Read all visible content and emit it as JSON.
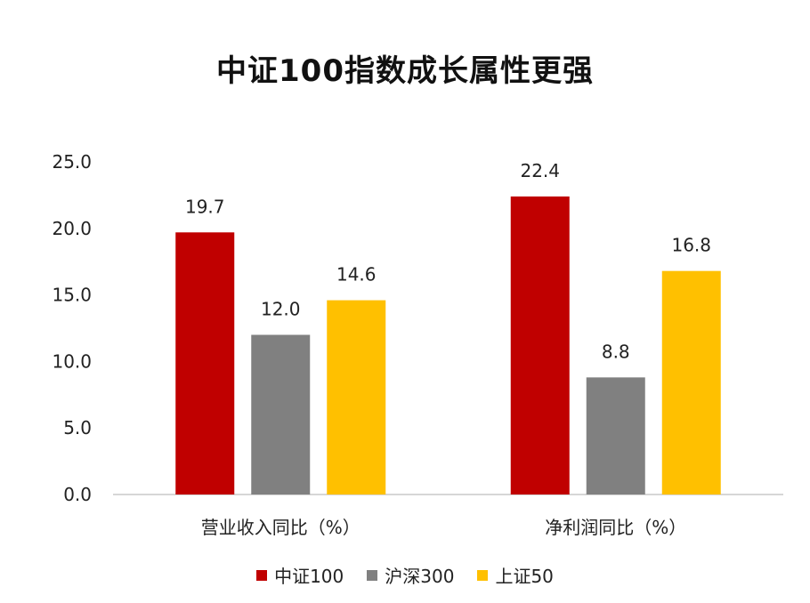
{
  "chart_data": {
    "type": "bar",
    "title": "中证100指数成长属性更强",
    "categories": [
      "营业收入同比（%）",
      "净利润同比（%）"
    ],
    "series": [
      {
        "name": "中证100",
        "values": [
          19.7,
          22.4
        ],
        "color": "#C00000"
      },
      {
        "name": "沪深300",
        "values": [
          12.0,
          8.8
        ],
        "color": "#808080"
      },
      {
        "name": "上证50",
        "values": [
          14.6,
          16.8
        ],
        "color": "#FFC000"
      }
    ],
    "value_labels": [
      [
        "19.7",
        "22.4"
      ],
      [
        "12.0",
        "8.8"
      ],
      [
        "14.6",
        "16.8"
      ]
    ],
    "ylim": [
      0,
      25
    ],
    "yticks": [
      "0.0",
      "5.0",
      "10.0",
      "15.0",
      "20.0",
      "25.0"
    ],
    "xlabel": "",
    "ylabel": "",
    "grid": false,
    "legend_position": "bottom"
  }
}
